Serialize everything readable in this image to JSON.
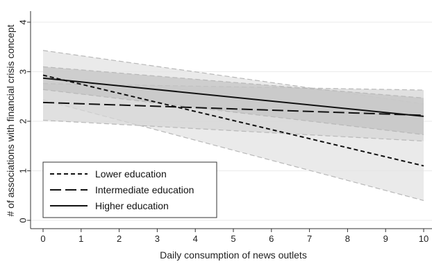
{
  "chart_data": {
    "type": "line",
    "title": "",
    "xlabel": "Daily consumption of news outlets",
    "ylabel": "# of associations with financial crisis concept",
    "xlim": [
      0,
      10
    ],
    "ylim": [
      0,
      4
    ],
    "xticks": [
      0,
      1,
      2,
      3,
      4,
      5,
      6,
      7,
      8,
      9,
      10
    ],
    "yticks": [
      0,
      1,
      2,
      3,
      4
    ],
    "grid": "horizontal",
    "legend_position": "bottom-left",
    "x": [
      0,
      10
    ],
    "series": [
      {
        "name": "Lower education",
        "style": "short-dash",
        "values": [
          2.93,
          1.1
        ],
        "ci_lower": [
          2.43,
          0.4
        ],
        "ci_upper": [
          3.43,
          2.35
        ],
        "band_color": "#e3e3e3"
      },
      {
        "name": "Intermediate education",
        "style": "long-dash",
        "values": [
          2.38,
          2.12
        ],
        "ci_lower": [
          2.02,
          1.6
        ],
        "ci_upper": [
          2.76,
          2.63
        ],
        "band_color": "#d6d6d6"
      },
      {
        "name": "Higher education",
        "style": "solid",
        "values": [
          2.87,
          2.1
        ],
        "ci_lower": [
          2.64,
          1.73
        ],
        "ci_upper": [
          3.1,
          2.47
        ],
        "band_color": "#c4c4c4"
      }
    ]
  }
}
